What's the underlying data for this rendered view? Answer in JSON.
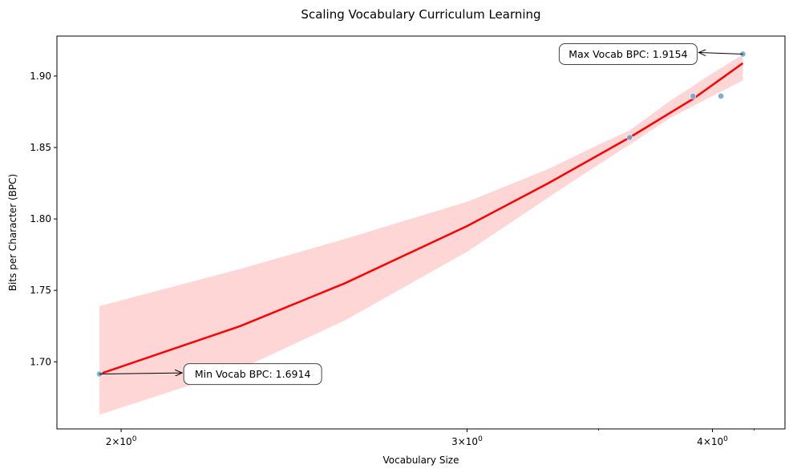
{
  "chart_data": {
    "type": "scatter",
    "title": "Scaling Vocabulary Curriculum Learning",
    "xlabel": "Vocabulary Size",
    "ylabel": "Bits per Character (BPC)",
    "x_scale": "log",
    "xlim": [
      1.855,
      4.355
    ],
    "ylim": [
      1.653,
      1.928
    ],
    "x_ticks": [
      {
        "value": 2,
        "base": "2",
        "exp": "0"
      },
      {
        "value": 3,
        "base": "3",
        "exp": "0"
      },
      {
        "value": 4,
        "base": "4",
        "exp": "0"
      }
    ],
    "y_ticks": [
      {
        "value": 1.7,
        "label": "1.70"
      },
      {
        "value": 1.75,
        "label": "1.75"
      },
      {
        "value": 1.8,
        "label": "1.80"
      },
      {
        "value": 1.85,
        "label": "1.85"
      },
      {
        "value": 1.9,
        "label": "1.90"
      }
    ],
    "grid": false,
    "points": {
      "color": "#6fa3cf",
      "x": [
        1.95,
        3.63,
        3.91,
        4.04,
        4.145
      ],
      "y": [
        1.6914,
        1.857,
        1.886,
        1.886,
        1.9154
      ]
    },
    "fit_line": {
      "color": "#ff0000",
      "x": [
        1.95,
        2.3,
        2.6,
        3.0,
        3.3,
        3.63,
        3.91,
        4.145
      ],
      "y": [
        1.6914,
        1.725,
        1.755,
        1.795,
        1.825,
        1.857,
        1.884,
        1.909
      ]
    },
    "confidence_band": {
      "color": "#ffd6d6",
      "x": [
        1.95,
        2.3,
        2.6,
        3.0,
        3.3,
        3.5,
        3.63,
        3.8,
        3.91,
        4.0,
        4.145
      ],
      "upper": [
        1.739,
        1.765,
        1.786,
        1.812,
        1.835,
        1.852,
        1.862,
        1.882,
        1.893,
        1.902,
        1.915
      ],
      "lower": [
        1.663,
        1.695,
        1.729,
        1.777,
        1.815,
        1.838,
        1.852,
        1.87,
        1.879,
        1.886,
        1.897
      ]
    },
    "annotations": [
      {
        "text": "Min Vocab BPC: 1.6914",
        "x": 1.95,
        "y": 1.6914,
        "text_side": "right"
      },
      {
        "text": "Max Vocab BPC: 1.9154",
        "x": 4.145,
        "y": 1.9154,
        "text_side": "left"
      }
    ]
  }
}
